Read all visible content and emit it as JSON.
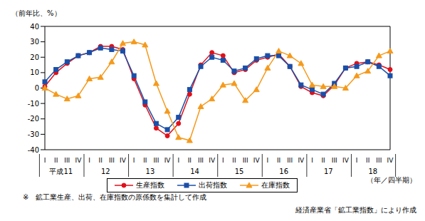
{
  "chart_data": {
    "type": "line",
    "y_label": "（前年比、%）",
    "x_label": "（年／四半期）",
    "categories": [
      "I",
      "II",
      "III",
      "IV",
      "I",
      "II",
      "III",
      "IV",
      "I",
      "II",
      "III",
      "IV",
      "I",
      "II",
      "III",
      "IV",
      "I",
      "II",
      "III",
      "IV",
      "I",
      "II",
      "III",
      "IV",
      "I",
      "II",
      "III",
      "IV",
      "I",
      "II",
      "III",
      "IV"
    ],
    "years": [
      "平成11",
      "12",
      "13",
      "14",
      "15",
      "16",
      "17",
      "18"
    ],
    "series": [
      {
        "name": "生産指数",
        "color": "#e0101a",
        "marker": "circle",
        "values": [
          1,
          10,
          16,
          21,
          23,
          27,
          27,
          25,
          6,
          -11,
          -26,
          -31,
          -23,
          -4,
          15,
          23,
          21,
          10,
          12,
          18,
          20,
          22,
          14,
          1,
          -3,
          -5,
          2,
          13,
          16,
          17,
          15,
          12
        ]
      },
      {
        "name": "出荷指数",
        "color": "#1a4fa8",
        "marker": "square",
        "values": [
          4,
          12,
          17,
          21,
          23,
          26,
          25,
          24,
          8,
          -9,
          -23,
          -27,
          -19,
          -1,
          14,
          20,
          18,
          11,
          13,
          19,
          21,
          21,
          14,
          2,
          -1,
          -4,
          3,
          13,
          14,
          17,
          14,
          8
        ]
      },
      {
        "name": "在庫指数",
        "color": "#f59a1c",
        "marker": "triangle",
        "values": [
          0,
          -4,
          -7,
          -5,
          6,
          7,
          17,
          29,
          30,
          28,
          3,
          -15,
          -32,
          -34,
          -12,
          -7,
          2,
          3,
          -8,
          -1,
          13,
          24,
          21,
          16,
          2,
          1,
          1,
          0,
          8,
          11,
          21,
          24
        ]
      }
    ],
    "ylim": [
      -40,
      40
    ],
    "yticks": [
      -40,
      -30,
      -20,
      -10,
      0,
      10,
      20,
      30,
      40
    ],
    "grid": false,
    "notes": [
      "※　鉱工業生産、出荷、在庫指数の原係数を集計して作成",
      "経済産業省「鉱工業指数」により作成"
    ]
  }
}
